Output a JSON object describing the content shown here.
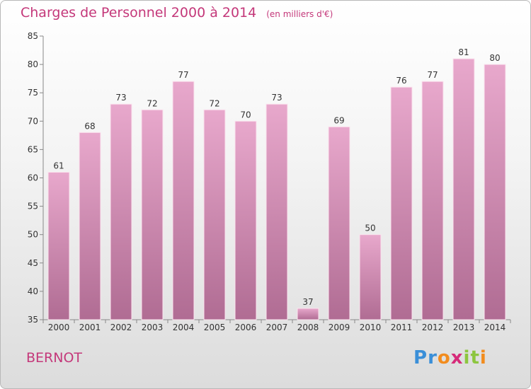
{
  "chart_data": {
    "type": "bar",
    "title": "Charges de Personnel 2000 à 2014",
    "subtitle": "(en milliers d'€)",
    "categories": [
      "2000",
      "2001",
      "2002",
      "2003",
      "2004",
      "2005",
      "2006",
      "2007",
      "2008",
      "2009",
      "2010",
      "2011",
      "2012",
      "2013",
      "2014"
    ],
    "values": [
      61,
      68,
      73,
      72,
      77,
      72,
      70,
      73,
      37,
      69,
      50,
      76,
      77,
      81,
      80
    ],
    "ylim": [
      35,
      85
    ],
    "yticks": [
      35,
      40,
      45,
      50,
      55,
      60,
      65,
      70,
      75,
      80,
      85
    ],
    "grid": false,
    "bar_color_top": "#e8a8cc",
    "bar_color_bottom": "#b06c93",
    "text_color": "#c4387a"
  },
  "place_name": "BERNOT",
  "logo": {
    "letters": [
      "P",
      "r",
      "o",
      "x",
      "i",
      "t",
      "i"
    ],
    "colors": [
      "#3a8fd8",
      "#3a8fd8",
      "#f28c1e",
      "#d62b7a",
      "#8dc63f",
      "#8dc63f",
      "#f28c1e"
    ]
  }
}
